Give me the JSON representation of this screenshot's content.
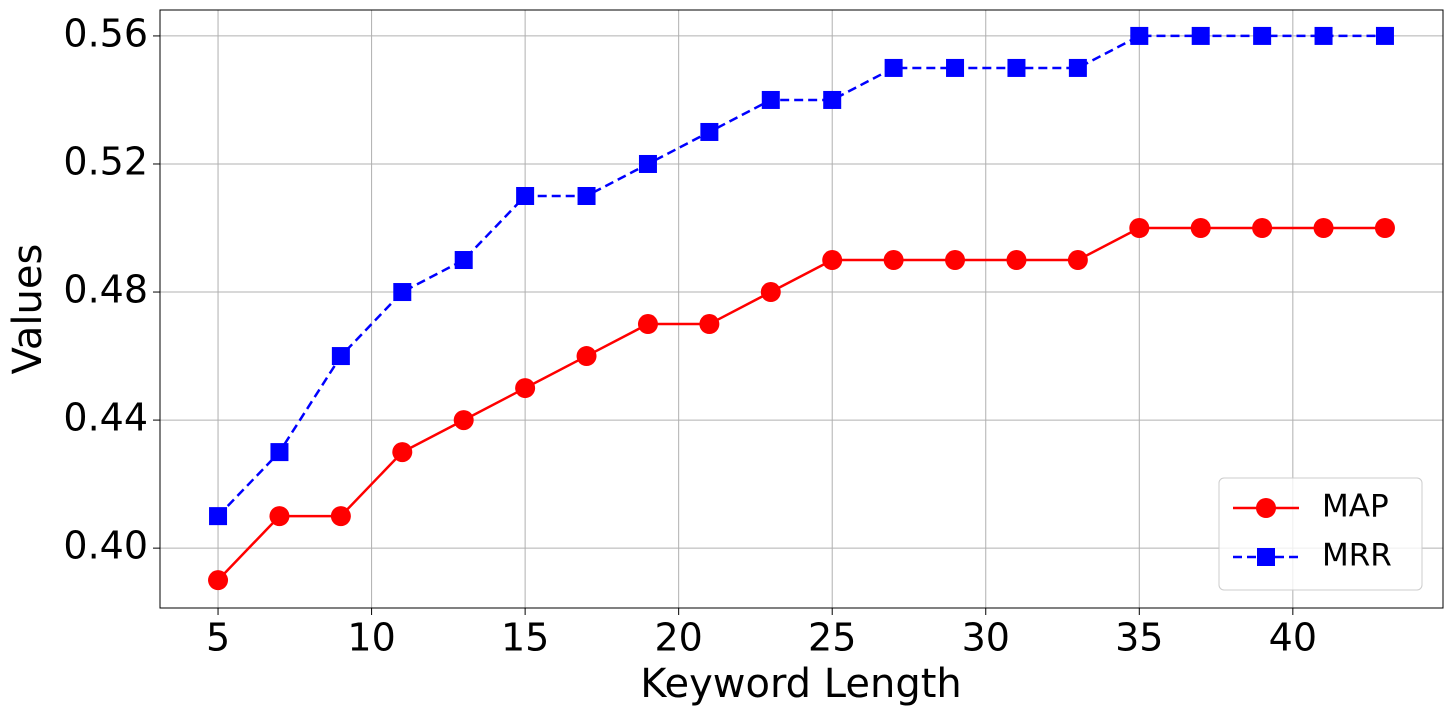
{
  "chart_data": {
    "type": "line",
    "x_label": "Keyword Length",
    "y_label": "Values",
    "x": [
      5,
      7,
      9,
      11,
      13,
      15,
      17,
      19,
      21,
      23,
      25,
      27,
      29,
      31,
      33,
      35,
      37,
      39,
      41,
      43
    ],
    "series": [
      {
        "name": "MAP",
        "color": "#ff0000",
        "line_style": "solid",
        "marker": "circle",
        "values": [
          0.39,
          0.41,
          0.41,
          0.43,
          0.44,
          0.45,
          0.46,
          0.47,
          0.47,
          0.48,
          0.49,
          0.49,
          0.49,
          0.49,
          0.49,
          0.5,
          0.5,
          0.5,
          0.5,
          0.5
        ]
      },
      {
        "name": "MRR",
        "color": "#0000ff",
        "line_style": "dashed",
        "marker": "square",
        "values": [
          0.41,
          0.43,
          0.46,
          0.48,
          0.49,
          0.51,
          0.51,
          0.52,
          0.53,
          0.54,
          0.54,
          0.55,
          0.55,
          0.55,
          0.55,
          0.56,
          0.56,
          0.56,
          0.56,
          0.56
        ]
      }
    ],
    "xlim": [
      3.11,
      44.89
    ],
    "ylim": [
      0.3813,
      0.5681
    ],
    "xticks": [
      5,
      10,
      15,
      20,
      25,
      30,
      35,
      40
    ],
    "yticks": [
      {
        "value": 0.4,
        "label": "0.40"
      },
      {
        "value": 0.44,
        "label": "0.44"
      },
      {
        "value": 0.48,
        "label": "0.48"
      },
      {
        "value": 0.52,
        "label": "0.52"
      },
      {
        "value": 0.56,
        "label": "0.56"
      }
    ],
    "grid": true,
    "legend": "lower right"
  }
}
